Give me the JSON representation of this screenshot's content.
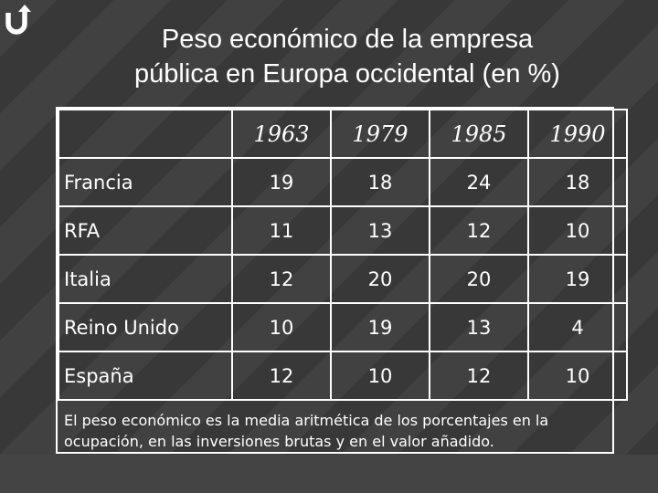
{
  "title": {
    "line1": "Peso económico de la empresa",
    "line2": "pública en Europa occidental (en %)"
  },
  "table": {
    "headers": [
      "",
      "1963",
      "1979",
      "1985",
      "1990"
    ],
    "rows": [
      {
        "label": "Francia",
        "values": [
          "19",
          "18",
          "24",
          "18"
        ]
      },
      {
        "label": "RFA",
        "values": [
          "11",
          "13",
          "12",
          "10"
        ]
      },
      {
        "label": "Italia",
        "values": [
          "12",
          "20",
          "20",
          "19"
        ]
      },
      {
        "label": "Reino Unido",
        "values": [
          "10",
          "19",
          "13",
          "4"
        ]
      },
      {
        "label": "España",
        "values": [
          "12",
          "10",
          "12",
          "10"
        ]
      }
    ]
  },
  "note": {
    "text": "El peso económico es la media aritmética de los porcentajes en la ocupación, en las inversiones brutas y en el valor añadido."
  },
  "colors": {
    "background": "#3a3a3a",
    "text": "#ffffff",
    "border": "#ffffff"
  },
  "icons": {
    "logo": "return-arrow-icon"
  }
}
